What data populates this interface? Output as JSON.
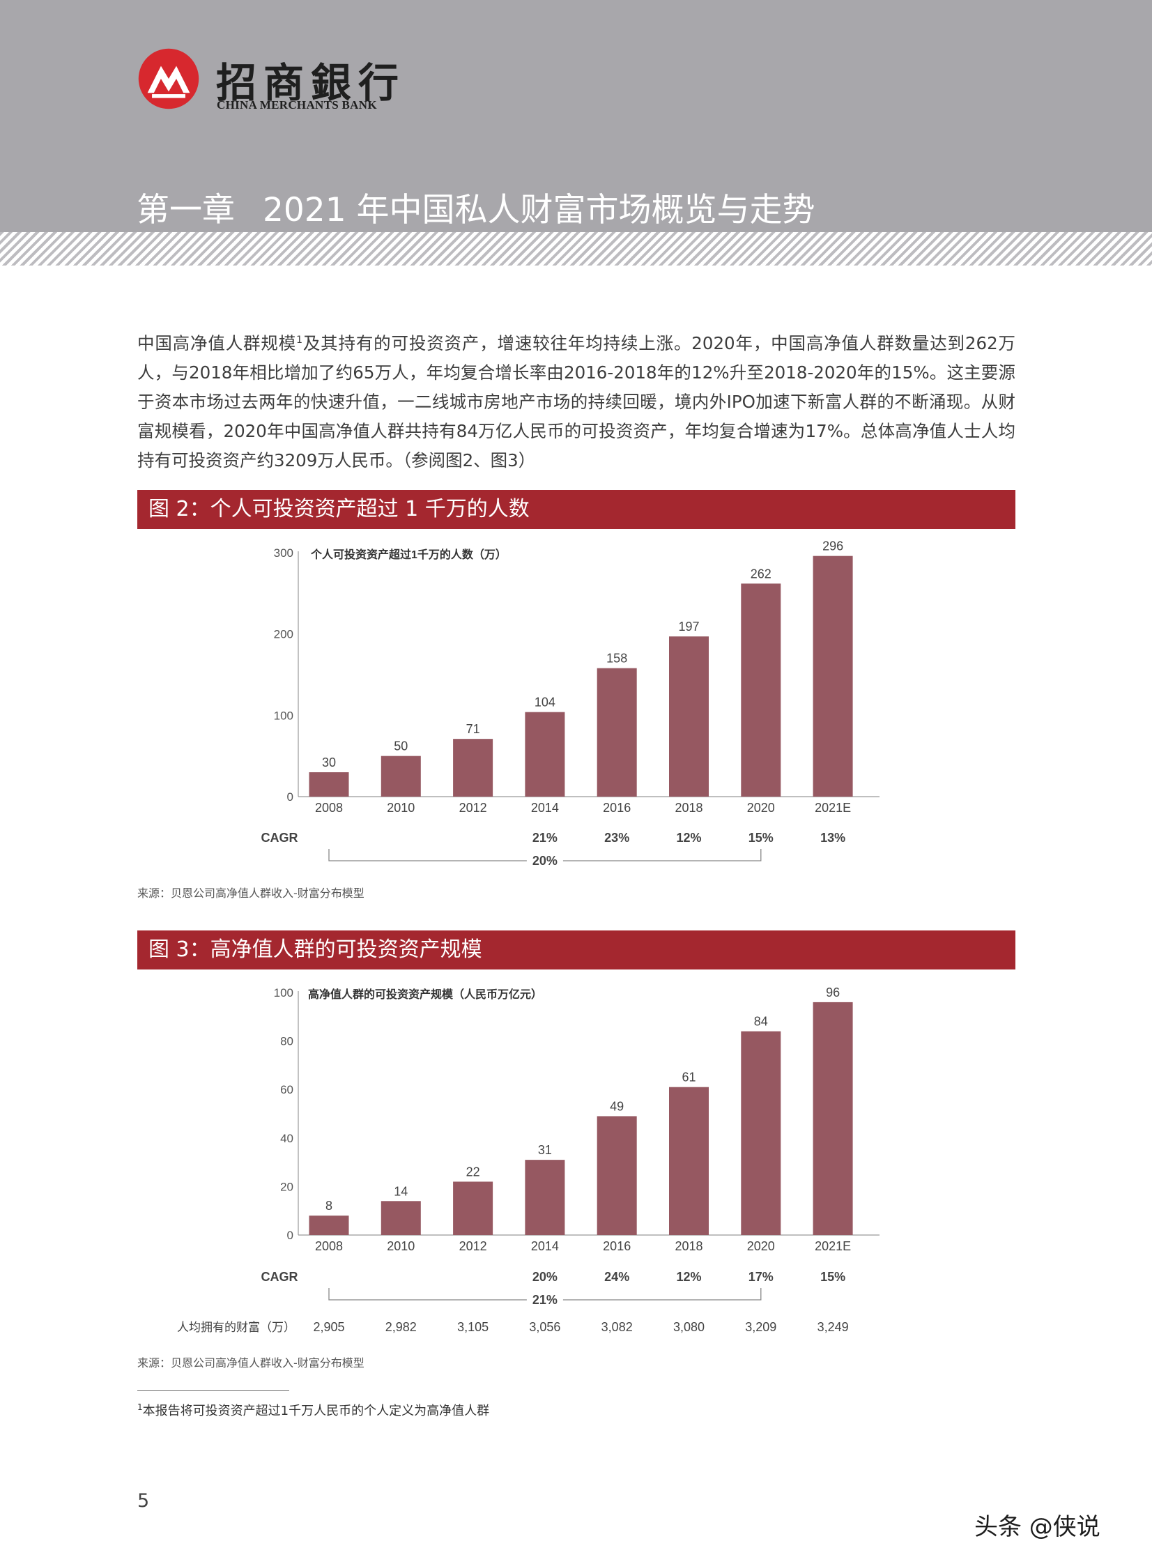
{
  "header": {
    "logo_cn": "招商銀行",
    "logo_en": "CHINA MERCHANTS BANK",
    "chapter_label": "第一章",
    "chapter_title": "2021 年中国私人财富市场概览与走势",
    "colors": {
      "header_bg": "#a8a7ab",
      "brand_red": "#d7282e"
    }
  },
  "intro": {
    "text_a": "中国高净值人群规模",
    "footnote_mark": "1",
    "text_b": "及其持有的可投资资产，增速较往年均持续上涨。2020年，中国高净值人群数量达到262万人，与2018年相比增加了约65万人，年均复合增长率由2016-2018年的12%升至2018-2020年的15%。这主要源于资本市场过去两年的快速升值，一二线城市房地产市场的持续回暖，境内外IPO加速下新富人群的不断涌现。从财富规模看，2020年中国高净值人群共持有84万亿人民币的可投资资产，年均复合增速为17%。总体高净值人士人均持有可投资资产约3209万人民币。（参阅图2、图3）"
  },
  "figure2": {
    "band_title": "图 2：个人可投资资产超过 1 千万的人数",
    "source": "来源：贝恩公司高净值人群收入-财富分布模型"
  },
  "figure3": {
    "band_title": "图 3：高净值人群的可投资资产规模",
    "source": "来源：贝恩公司高净值人群收入-财富分布模型"
  },
  "chart_data": [
    {
      "type": "bar",
      "title": "个人可投资资产超过1千万的人数（万）",
      "categories": [
        "2008",
        "2010",
        "2012",
        "2014",
        "2016",
        "2018",
        "2020",
        "2021E"
      ],
      "values": [
        30,
        50,
        71,
        104,
        158,
        197,
        262,
        296
      ],
      "ylim": [
        0,
        300
      ],
      "yticks": [
        0,
        100,
        200,
        300
      ],
      "bar_color": "#965861",
      "cagr_label": "CAGR",
      "cagr": [
        "",
        "",
        "",
        "21%",
        "23%",
        "12%",
        "15%",
        "13%"
      ],
      "cagr_span": {
        "label": "20%",
        "from": "2008",
        "to": "2020"
      }
    },
    {
      "type": "bar",
      "title": "高净值人群的可投资资产规模（人民币万亿元）",
      "categories": [
        "2008",
        "2010",
        "2012",
        "2014",
        "2016",
        "2018",
        "2020",
        "2021E"
      ],
      "values": [
        8,
        14,
        22,
        31,
        49,
        61,
        84,
        96
      ],
      "ylim": [
        0,
        100
      ],
      "yticks": [
        0,
        20,
        40,
        60,
        80,
        100
      ],
      "bar_color": "#965861",
      "cagr_label": "CAGR",
      "cagr": [
        "",
        "",
        "",
        "20%",
        "24%",
        "12%",
        "17%",
        "15%"
      ],
      "cagr_span": {
        "label": "21%",
        "from": "2008",
        "to": "2020"
      },
      "per_capita_label": "人均拥有的财富（万）",
      "per_capita": [
        "2,905",
        "2,982",
        "3,105",
        "3,056",
        "3,082",
        "3,080",
        "3,209",
        "3,249"
      ]
    }
  ],
  "footnote": {
    "mark": "1",
    "text": "本报告将可投资资产超过1千万人民币的个人定义为高净值人群"
  },
  "page_number": "5",
  "watermark": "头条 @侠说"
}
